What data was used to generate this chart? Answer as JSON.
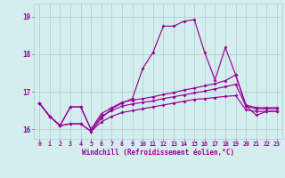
{
  "xlabel": "Windchill (Refroidissement éolien,°C)",
  "bg_color": "#d4eeee",
  "line_color": "#990099",
  "grid_color": "#aacccc",
  "xlim": [
    -0.5,
    23.5
  ],
  "ylim": [
    15.75,
    19.35
  ],
  "yticks": [
    16,
    17,
    18,
    19
  ],
  "xticks": [
    0,
    1,
    2,
    3,
    4,
    5,
    6,
    7,
    8,
    9,
    10,
    11,
    12,
    13,
    14,
    15,
    16,
    17,
    18,
    19,
    20,
    21,
    22,
    23
  ],
  "series": [
    [
      16.7,
      16.35,
      16.1,
      16.15,
      16.15,
      15.95,
      16.2,
      16.35,
      16.45,
      16.5,
      16.55,
      16.6,
      16.65,
      16.7,
      16.75,
      16.8,
      16.82,
      16.85,
      16.88,
      16.9,
      16.52,
      16.48,
      16.48,
      16.48
    ],
    [
      16.7,
      16.35,
      16.1,
      16.6,
      16.6,
      16.0,
      16.35,
      16.5,
      16.62,
      16.68,
      16.72,
      16.76,
      16.82,
      16.87,
      16.92,
      16.97,
      17.02,
      17.08,
      17.14,
      17.2,
      16.62,
      16.55,
      16.55,
      16.55
    ],
    [
      16.7,
      16.35,
      16.1,
      16.6,
      16.6,
      16.0,
      16.42,
      16.58,
      16.72,
      16.78,
      16.82,
      16.87,
      16.93,
      16.98,
      17.05,
      17.1,
      17.16,
      17.22,
      17.3,
      17.45,
      16.65,
      16.58,
      16.58,
      16.58
    ],
    [
      16.7,
      16.35,
      16.1,
      16.15,
      16.15,
      15.95,
      16.3,
      16.55,
      16.7,
      16.82,
      17.62,
      18.05,
      18.75,
      18.75,
      18.88,
      18.92,
      18.05,
      17.32,
      18.18,
      17.45,
      16.62,
      16.38,
      16.48,
      16.48
    ]
  ]
}
